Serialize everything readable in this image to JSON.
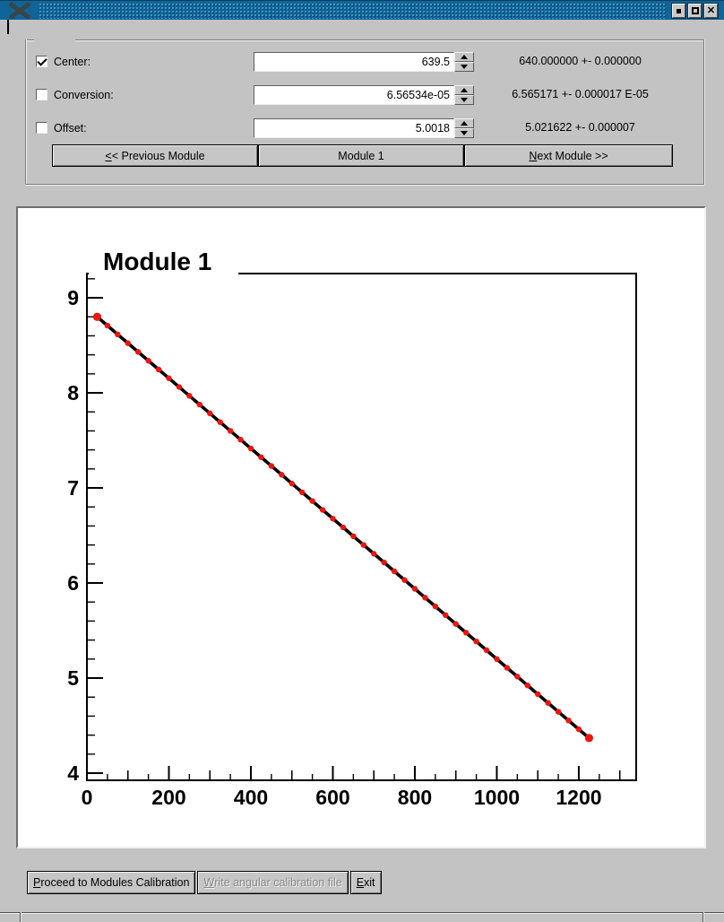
{
  "titlebar": {
    "app_icon": "x11-logo",
    "buttons": [
      "iconify",
      "maximize",
      "close"
    ]
  },
  "calibration_panel": {
    "rows": [
      {
        "label": "Center:",
        "checked": true,
        "value": "639.5",
        "result": "640.000000 +- 0.000000"
      },
      {
        "label": "Conversion:",
        "checked": false,
        "value": "6.56534e-05",
        "result": "6.565171 +- 0.000017 E-05"
      },
      {
        "label": "Offset:",
        "checked": false,
        "value": "5.0018",
        "result": "5.021622 +- 0.000007"
      }
    ],
    "module_nav": {
      "prev": {
        "label": "<< Previous Module",
        "mnemonic": 0
      },
      "current": {
        "label": "Module 1",
        "mnemonic": -1
      },
      "next": {
        "label": "Next Module >>",
        "mnemonic": 0
      }
    }
  },
  "chart_data": {
    "type": "scatter",
    "title": "Module 1",
    "xlabel": "",
    "ylabel": "",
    "xlim": [
      0,
      1340
    ],
    "ylim": [
      3.925,
      9.255
    ],
    "grid": false,
    "x_ticks": {
      "major_step": 200,
      "medium_step": 100,
      "minor_step": 50,
      "major_labels": [
        0,
        200,
        400,
        600,
        800,
        1000,
        1200
      ]
    },
    "y_ticks": {
      "major_step": 1,
      "minor_step": 0.2,
      "major_labels": [
        4,
        5,
        6,
        7,
        8,
        9
      ]
    },
    "marker_color": "#ef1410",
    "line_color": "#000000",
    "fit_line": {
      "x_start": 25,
      "y_start": 8.8,
      "x_end": 1225,
      "y_end": 4.37
    },
    "points": [
      [
        25,
        8.8
      ],
      [
        50,
        8.708
      ],
      [
        75,
        8.615
      ],
      [
        100,
        8.523
      ],
      [
        125,
        8.431
      ],
      [
        150,
        8.338
      ],
      [
        175,
        8.246
      ],
      [
        200,
        8.154
      ],
      [
        225,
        8.062
      ],
      [
        250,
        7.969
      ],
      [
        275,
        7.877
      ],
      [
        300,
        7.785
      ],
      [
        325,
        7.692
      ],
      [
        350,
        7.6
      ],
      [
        375,
        7.508
      ],
      [
        400,
        7.415
      ],
      [
        425,
        7.323
      ],
      [
        450,
        7.231
      ],
      [
        475,
        7.139
      ],
      [
        500,
        7.046
      ],
      [
        525,
        6.954
      ],
      [
        550,
        6.862
      ],
      [
        575,
        6.769
      ],
      [
        600,
        6.677
      ],
      [
        625,
        6.585
      ],
      [
        650,
        6.492
      ],
      [
        675,
        6.4
      ],
      [
        700,
        6.308
      ],
      [
        725,
        6.216
      ],
      [
        750,
        6.123
      ],
      [
        775,
        6.031
      ],
      [
        800,
        5.939
      ],
      [
        825,
        5.846
      ],
      [
        850,
        5.754
      ],
      [
        875,
        5.662
      ],
      [
        900,
        5.569
      ],
      [
        925,
        5.477
      ],
      [
        950,
        5.385
      ],
      [
        975,
        5.293
      ],
      [
        1000,
        5.2
      ],
      [
        1025,
        5.108
      ],
      [
        1050,
        5.016
      ],
      [
        1075,
        4.923
      ],
      [
        1100,
        4.831
      ],
      [
        1125,
        4.739
      ],
      [
        1150,
        4.646
      ],
      [
        1175,
        4.554
      ],
      [
        1200,
        4.462
      ],
      [
        1225,
        4.37
      ]
    ]
  },
  "footer": {
    "buttons": [
      {
        "label": "Proceed to Modules Calibration",
        "mnemonic": 0,
        "enabled": true
      },
      {
        "label": "Write angular calibration file",
        "mnemonic": 0,
        "enabled": false
      },
      {
        "label": "Exit",
        "mnemonic": 0,
        "enabled": true
      }
    ]
  }
}
